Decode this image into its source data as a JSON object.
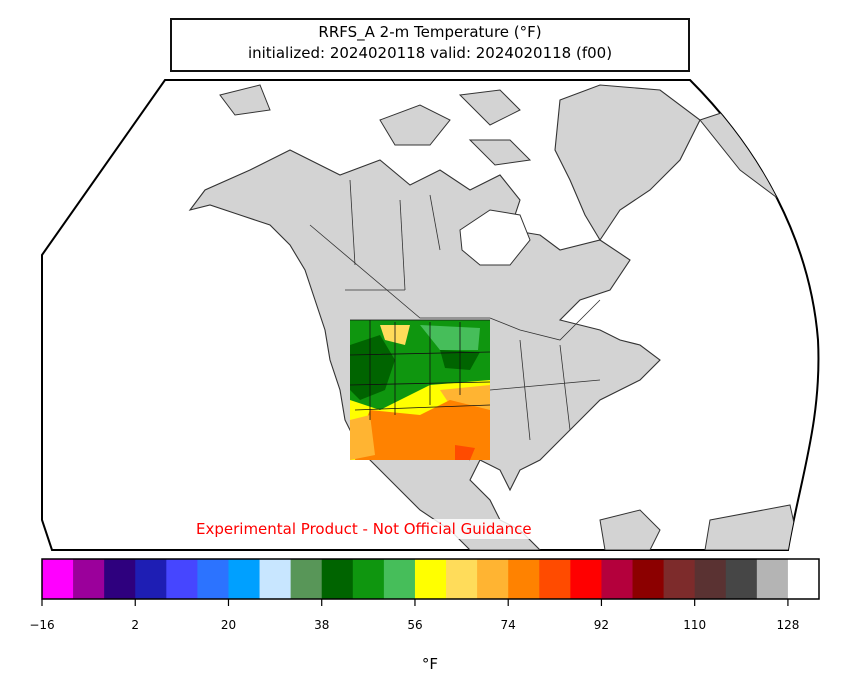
{
  "title": {
    "line1": "RRFS_A 2-m Temperature (°F)",
    "line2": "initialized: 2024020118 valid: 2024020118 (f00)"
  },
  "watermark": "Experimental Product - Not Official Guidance",
  "colorbar": {
    "unit_label": "°F",
    "min": -16,
    "max": 134,
    "step": 6,
    "ticks": [
      -16,
      2,
      20,
      38,
      56,
      74,
      92,
      110,
      128
    ],
    "tick_labels": [
      "−16",
      "2",
      "20",
      "38",
      "56",
      "74",
      "92",
      "110",
      "128"
    ],
    "colors": [
      "#ff00ff",
      "#9b009b",
      "#2e007e",
      "#1e1eb4",
      "#4646ff",
      "#2c73ff",
      "#00a0ff",
      "#c8e6ff",
      "#589658",
      "#006400",
      "#0f960f",
      "#46be5a",
      "#ffff00",
      "#ffdc5a",
      "#ffb432",
      "#ff8200",
      "#ff4b00",
      "#ff0000",
      "#b4003c",
      "#8c0000",
      "#7d2b2b",
      "#5a3232",
      "#464646",
      "#b4b4b4",
      "#ffffff"
    ]
  },
  "map": {
    "land_color": "#d3d3d3",
    "ocean_color": "#ffffff",
    "border_color": "#222222"
  }
}
